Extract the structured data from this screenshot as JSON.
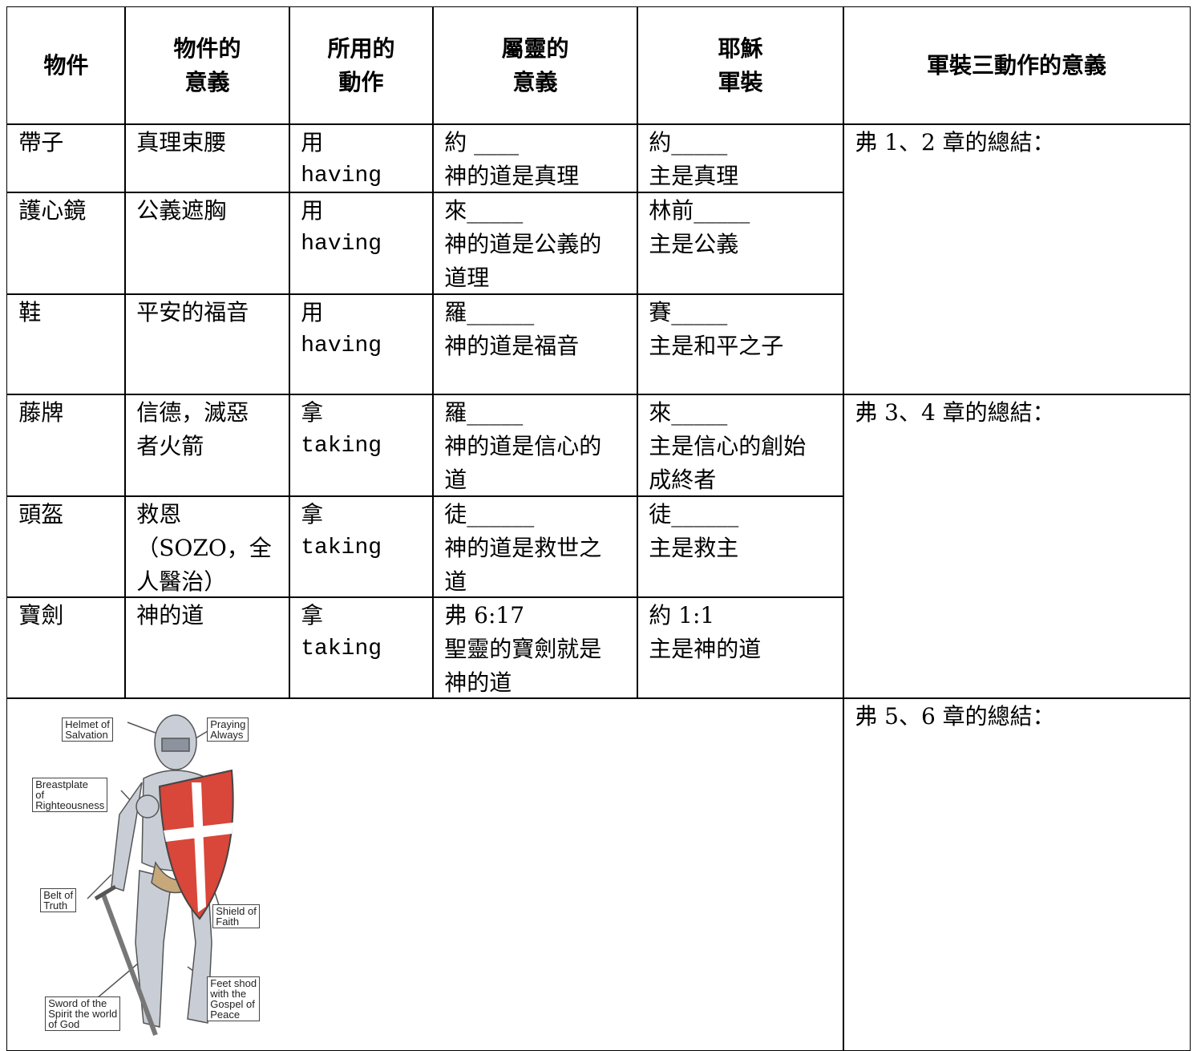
{
  "table": {
    "header": [
      [
        "物件"
      ],
      [
        "物件的",
        "意義"
      ],
      [
        "所用的",
        "動作"
      ],
      [
        "屬靈的",
        "意義"
      ],
      [
        "耶穌",
        "軍裝"
      ],
      [
        "軍裝三動作的意義"
      ]
    ],
    "rows": [
      [
        [
          "帶子"
        ],
        [
          "真理束腰"
        ],
        [
          "用",
          "having"
        ],
        [
          "約 ____",
          "神的道是真理"
        ],
        [
          "約_____",
          "主是真理"
        ]
      ],
      [
        [
          "護心鏡"
        ],
        [
          "公義遮胸"
        ],
        [
          "用",
          "having"
        ],
        [
          "來_____",
          "神的道是公義的",
          "道理"
        ],
        [
          "林前_____",
          "主是公義"
        ]
      ],
      [
        [
          "鞋"
        ],
        [
          "平安的福音"
        ],
        [
          "用",
          "having"
        ],
        [
          "羅______",
          "神的道是福音"
        ],
        [
          "賽_____",
          "主是和平之子"
        ]
      ],
      [
        [
          "藤牌"
        ],
        [
          "信德，滅惡",
          "者火箭"
        ],
        [
          "拿",
          "taking"
        ],
        [
          "羅_____",
          "神的道是信心的",
          "道"
        ],
        [
          "來_____",
          "主是信心的創始",
          "成終者"
        ]
      ],
      [
        [
          "頭盔"
        ],
        [
          "救恩",
          "（SOZO，全",
          "人醫治）"
        ],
        [
          "拿",
          "taking"
        ],
        [
          "徒______",
          "神的道是救世之",
          "道"
        ],
        [
          "徒______",
          "主是救主"
        ]
      ],
      [
        [
          "寶劍"
        ],
        [
          "神的道"
        ],
        [
          "拿",
          "taking"
        ],
        [
          "弗 6:17",
          "聖靈的寶劍就是",
          "神的道"
        ],
        [
          "約 1:1",
          "主是神的道"
        ]
      ]
    ],
    "summaries": [
      [
        "弗 1、2 章的總結："
      ],
      [
        "弗 3、4 章的總結："
      ],
      [
        "弗 5、6 章的總結："
      ]
    ]
  },
  "image": {
    "labels": [
      [
        "Helmet of",
        "Salvation"
      ],
      [
        "Praying",
        "Always"
      ],
      [
        "Breastplate",
        "of",
        "Righteousness"
      ],
      [
        "Belt of",
        "Truth"
      ],
      [
        "Shield of",
        "Faith"
      ],
      [
        "Feet shod",
        "with the",
        "Gospel of",
        "Peace"
      ],
      [
        "Sword of the",
        "Spirit the world",
        "of God"
      ]
    ]
  }
}
